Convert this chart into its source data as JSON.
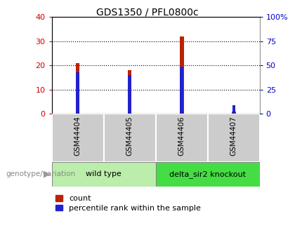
{
  "title": "GDS1350 / PFL0800c",
  "samples": [
    "GSM44404",
    "GSM44405",
    "GSM44406",
    "GSM44407"
  ],
  "count_values": [
    21,
    18,
    32,
    1
  ],
  "percentile_values": [
    42.5,
    40,
    48.75,
    8.75
  ],
  "left_ylim": [
    0,
    40
  ],
  "left_yticks": [
    0,
    10,
    20,
    30,
    40
  ],
  "right_ylim": [
    0,
    100
  ],
  "right_yticks": [
    0,
    25,
    50,
    75,
    100
  ],
  "right_yticklabels": [
    "0",
    "25",
    "50",
    "75",
    "100%"
  ],
  "left_tick_color": "#cc0000",
  "right_tick_color": "#0000cc",
  "groups": [
    {
      "label": "wild type",
      "color": "#bbeeaa",
      "n_samples": 2
    },
    {
      "label": "delta_sir2 knockout",
      "color": "#44dd44",
      "n_samples": 2
    }
  ],
  "genotype_label": "genotype/variation",
  "legend_count_label": "count",
  "legend_percentile_label": "percentile rank within the sample",
  "count_color": "#bb2200",
  "percentile_color": "#2222cc",
  "sample_bg_color": "#cccccc",
  "sample_border_color": "#888888"
}
